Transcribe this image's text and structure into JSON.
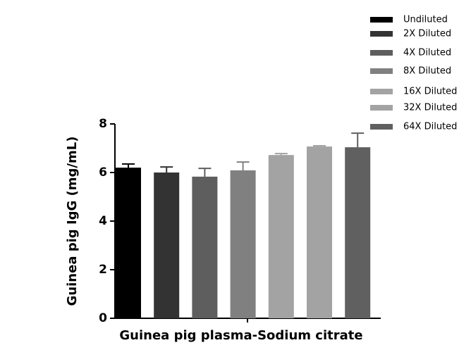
{
  "chart_data": {
    "type": "bar",
    "categories": [
      "Guinea pig plasma-Sodium citrate"
    ],
    "ylabel": "Guinea pig IgG (mg/mL)",
    "ylim": [
      0,
      8
    ],
    "yticks": [
      0,
      2,
      4,
      6,
      8
    ],
    "series": [
      {
        "name": "Undiluted",
        "color": "#000000",
        "values": [
          6.2
        ],
        "errors": [
          0.15
        ]
      },
      {
        "name": "2X Diluted",
        "color": "#333333",
        "values": [
          6.0
        ],
        "errors": [
          0.23
        ]
      },
      {
        "name": "4X Diluted",
        "color": "#5e5e5e",
        "values": [
          5.83
        ],
        "errors": [
          0.34
        ]
      },
      {
        "name": "8X Diluted",
        "color": "#808080",
        "values": [
          6.09
        ],
        "errors": [
          0.34
        ]
      },
      {
        "name": "16X Diluted",
        "color": "#a3a3a3",
        "values": [
          6.72
        ],
        "errors": [
          0.06
        ]
      },
      {
        "name": "32X Diluted",
        "color": "#a3a3a3",
        "values": [
          7.07
        ],
        "errors": [
          0.03
        ]
      },
      {
        "name": "64X Diluted",
        "color": "#606060",
        "values": [
          7.04
        ],
        "errors": [
          0.58
        ]
      }
    ]
  }
}
